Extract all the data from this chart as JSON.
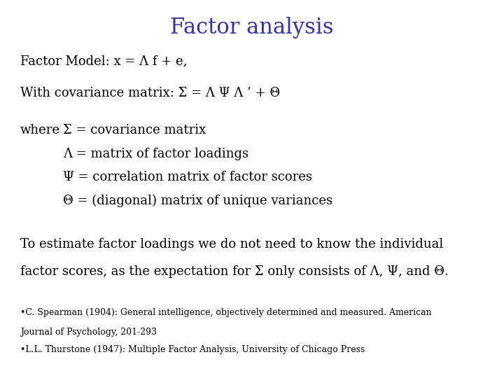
{
  "title": "Factor analysis",
  "title_color": "#3333AA",
  "title_fontsize": 22,
  "title_font": "serif",
  "bg_color": "#ffffff",
  "body_color": "#000000",
  "body_fontsize": 13,
  "body_font": "serif",
  "line1": "Factor Model: x = Λ f + e,",
  "line2": "With covariance matrix: Σ = Λ Ψ Λ ’ + Θ",
  "where_label": "where",
  "where_lines": [
    "Σ = covariance matrix",
    "Λ = matrix of factor loadings",
    "Ψ = correlation matrix of factor scores",
    "Θ = (diagonal) matrix of unique variances"
  ],
  "paragraph_line1": "To estimate factor loadings we do not need to know the individual",
  "paragraph_line2": "factor scores, as the expectation for Σ only consists of Λ, Ψ, and Θ.",
  "footnote1_line1": "•C. Spearman (1904): General intelligence, objectively determined and measured. American",
  "footnote1_line2": "Journal of Psychology, 201-293",
  "footnote2": "•L.L. Thurstone (1947): Multiple Factor Analysis, University of Chicago Press",
  "footnote_fontsize": 9
}
